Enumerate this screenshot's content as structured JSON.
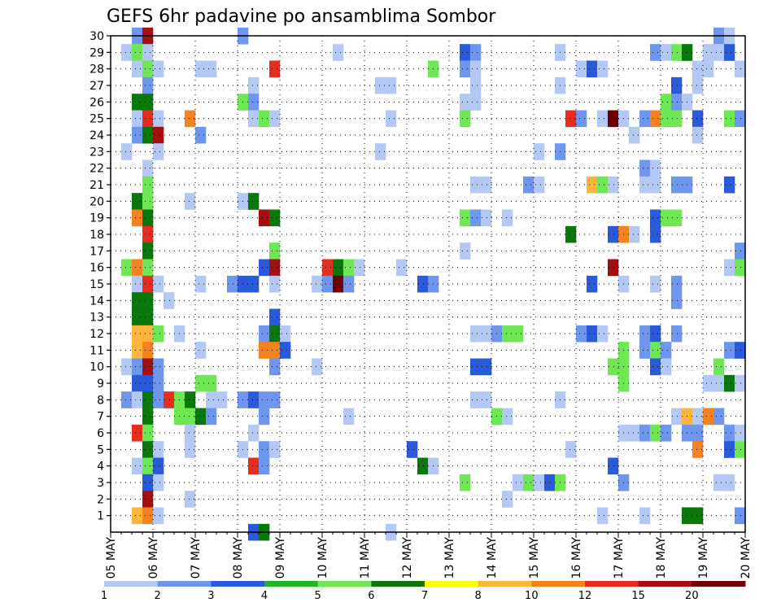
{
  "chart_data": {
    "type": "heatmap",
    "title": "GEFS 6hr padavine po ansamblima Sombor",
    "xlabel": "",
    "ylabel": "",
    "x_ticks": [
      "05 MAY",
      "06 MAY",
      "07 MAY",
      "08 MAY",
      "09 MAY",
      "10 MAY",
      "11 MAY",
      "12 MAY",
      "13 MAY",
      "14 MAY",
      "15 MAY",
      "16 MAY",
      "17 MAY",
      "18 MAY",
      "19 MAY",
      "20 MAY"
    ],
    "xlim": [
      0,
      60
    ],
    "y_ticks": [
      1,
      2,
      3,
      4,
      5,
      6,
      7,
      8,
      9,
      10,
      11,
      12,
      13,
      14,
      15,
      16,
      17,
      18,
      19,
      20,
      21,
      22,
      23,
      24,
      25,
      26,
      27,
      28,
      29,
      30
    ],
    "ylim": [
      0,
      30
    ],
    "grid": true,
    "legend_placement": "bottom",
    "colorbar": {
      "labels": [
        "1",
        "2",
        "3",
        "4",
        "5",
        "6",
        "7",
        "8",
        "10",
        "12",
        "15",
        "20"
      ],
      "colors": [
        "#b4c8f5",
        "#6e96ee",
        "#2a5adc",
        "#22b422",
        "#6ee852",
        "#0a780a",
        "#ffff00",
        "#ffb43c",
        "#f5821e",
        "#e62d1e",
        "#a50f0f",
        "#6e0000"
      ]
    },
    "cell_value_note": "values in mm per 6h",
    "cells": [
      [
        2,
        30,
        2
      ],
      [
        3,
        30,
        15
      ],
      [
        12,
        30,
        2
      ],
      [
        57,
        30,
        2
      ],
      [
        58,
        30,
        1
      ],
      [
        1,
        29,
        1
      ],
      [
        2,
        29,
        5
      ],
      [
        3,
        29,
        1
      ],
      [
        21,
        29,
        1
      ],
      [
        33,
        29,
        3
      ],
      [
        34,
        29,
        2
      ],
      [
        42,
        29,
        1
      ],
      [
        51,
        29,
        2
      ],
      [
        52,
        29,
        1
      ],
      [
        53,
        29,
        5
      ],
      [
        54,
        29,
        6
      ],
      [
        56,
        29,
        1
      ],
      [
        57,
        29,
        1
      ],
      [
        58,
        29,
        3
      ],
      [
        2,
        28,
        1
      ],
      [
        3,
        28,
        5
      ],
      [
        4,
        28,
        1
      ],
      [
        8,
        28,
        1
      ],
      [
        9,
        28,
        1
      ],
      [
        15,
        28,
        12
      ],
      [
        30,
        28,
        5
      ],
      [
        33,
        28,
        2
      ],
      [
        34,
        28,
        1
      ],
      [
        44,
        28,
        1
      ],
      [
        45,
        28,
        3
      ],
      [
        46,
        28,
        1
      ],
      [
        55,
        28,
        1
      ],
      [
        56,
        28,
        1
      ],
      [
        59,
        28,
        1
      ],
      [
        3,
        27,
        2
      ],
      [
        13,
        27,
        1
      ],
      [
        25,
        27,
        1
      ],
      [
        26,
        27,
        1
      ],
      [
        34,
        27,
        1
      ],
      [
        42,
        27,
        1
      ],
      [
        53,
        27,
        3
      ],
      [
        55,
        27,
        1
      ],
      [
        2,
        26,
        6
      ],
      [
        3,
        26,
        6
      ],
      [
        12,
        26,
        5
      ],
      [
        13,
        26,
        2
      ],
      [
        33,
        26,
        1
      ],
      [
        34,
        26,
        1
      ],
      [
        52,
        26,
        5
      ],
      [
        53,
        26,
        2
      ],
      [
        54,
        26,
        1
      ],
      [
        2,
        25,
        1
      ],
      [
        3,
        25,
        12
      ],
      [
        4,
        25,
        1
      ],
      [
        7,
        25,
        10
      ],
      [
        13,
        25,
        1
      ],
      [
        14,
        25,
        5
      ],
      [
        15,
        25,
        1
      ],
      [
        26,
        25,
        1
      ],
      [
        33,
        25,
        5
      ],
      [
        43,
        25,
        12
      ],
      [
        44,
        25,
        2
      ],
      [
        46,
        25,
        1
      ],
      [
        47,
        25,
        20
      ],
      [
        48,
        25,
        1
      ],
      [
        50,
        25,
        2
      ],
      [
        51,
        25,
        10
      ],
      [
        52,
        25,
        5
      ],
      [
        53,
        25,
        5
      ],
      [
        55,
        25,
        3
      ],
      [
        58,
        25,
        5
      ],
      [
        59,
        25,
        2
      ],
      [
        2,
        24,
        2
      ],
      [
        3,
        24,
        6
      ],
      [
        4,
        24,
        15
      ],
      [
        8,
        24,
        2
      ],
      [
        49,
        24,
        1
      ],
      [
        55,
        24,
        1
      ],
      [
        1,
        23,
        1
      ],
      [
        4,
        23,
        1
      ],
      [
        25,
        23,
        1
      ],
      [
        40,
        23,
        1
      ],
      [
        42,
        23,
        2
      ],
      [
        3,
        22,
        1
      ],
      [
        50,
        22,
        2
      ],
      [
        51,
        22,
        1
      ],
      [
        3,
        21,
        5
      ],
      [
        34,
        21,
        1
      ],
      [
        35,
        21,
        1
      ],
      [
        39,
        21,
        2
      ],
      [
        40,
        21,
        1
      ],
      [
        45,
        21,
        8
      ],
      [
        46,
        21,
        5
      ],
      [
        47,
        21,
        1
      ],
      [
        50,
        21,
        1
      ],
      [
        51,
        21,
        1
      ],
      [
        53,
        21,
        2
      ],
      [
        54,
        21,
        2
      ],
      [
        58,
        21,
        3
      ],
      [
        2,
        20,
        6
      ],
      [
        3,
        20,
        5
      ],
      [
        7,
        20,
        1
      ],
      [
        12,
        20,
        1
      ],
      [
        13,
        20,
        6
      ],
      [
        2,
        19,
        10
      ],
      [
        3,
        19,
        6
      ],
      [
        14,
        19,
        15
      ],
      [
        15,
        19,
        6
      ],
      [
        33,
        19,
        5
      ],
      [
        34,
        19,
        2
      ],
      [
        35,
        19,
        1
      ],
      [
        37,
        19,
        1
      ],
      [
        51,
        19,
        3
      ],
      [
        52,
        19,
        5
      ],
      [
        53,
        19,
        5
      ],
      [
        3,
        18,
        12
      ],
      [
        43,
        18,
        6
      ],
      [
        47,
        18,
        3
      ],
      [
        48,
        18,
        10
      ],
      [
        49,
        18,
        1
      ],
      [
        51,
        18,
        3
      ],
      [
        3,
        17,
        6
      ],
      [
        15,
        17,
        5
      ],
      [
        33,
        17,
        1
      ],
      [
        59,
        17,
        2
      ],
      [
        1,
        16,
        5
      ],
      [
        2,
        16,
        10
      ],
      [
        3,
        16,
        5
      ],
      [
        14,
        16,
        3
      ],
      [
        15,
        16,
        15
      ],
      [
        20,
        16,
        12
      ],
      [
        21,
        16,
        6
      ],
      [
        22,
        16,
        5
      ],
      [
        23,
        16,
        1
      ],
      [
        27,
        16,
        1
      ],
      [
        47,
        16,
        15
      ],
      [
        58,
        16,
        1
      ],
      [
        59,
        16,
        5
      ],
      [
        2,
        15,
        1
      ],
      [
        3,
        15,
        12
      ],
      [
        4,
        15,
        1
      ],
      [
        8,
        15,
        1
      ],
      [
        11,
        15,
        2
      ],
      [
        12,
        15,
        3
      ],
      [
        13,
        15,
        3
      ],
      [
        15,
        15,
        1
      ],
      [
        19,
        15,
        1
      ],
      [
        20,
        15,
        2
      ],
      [
        21,
        15,
        20
      ],
      [
        22,
        15,
        2
      ],
      [
        29,
        15,
        3
      ],
      [
        30,
        15,
        2
      ],
      [
        45,
        15,
        3
      ],
      [
        48,
        15,
        1
      ],
      [
        51,
        15,
        1
      ],
      [
        53,
        15,
        2
      ],
      [
        2,
        14,
        6
      ],
      [
        3,
        14,
        6
      ],
      [
        5,
        14,
        1
      ],
      [
        53,
        14,
        2
      ],
      [
        2,
        13,
        6
      ],
      [
        3,
        13,
        6
      ],
      [
        15,
        13,
        3
      ],
      [
        2,
        12,
        8
      ],
      [
        3,
        12,
        8
      ],
      [
        4,
        12,
        5
      ],
      [
        6,
        12,
        1
      ],
      [
        14,
        12,
        2
      ],
      [
        15,
        12,
        6
      ],
      [
        16,
        12,
        1
      ],
      [
        34,
        12,
        1
      ],
      [
        35,
        12,
        1
      ],
      [
        36,
        12,
        2
      ],
      [
        37,
        12,
        5
      ],
      [
        38,
        12,
        5
      ],
      [
        44,
        12,
        2
      ],
      [
        45,
        12,
        3
      ],
      [
        46,
        12,
        1
      ],
      [
        50,
        12,
        2
      ],
      [
        51,
        12,
        3
      ],
      [
        53,
        12,
        2
      ],
      [
        2,
        11,
        8
      ],
      [
        3,
        11,
        10
      ],
      [
        8,
        11,
        1
      ],
      [
        14,
        11,
        10
      ],
      [
        15,
        11,
        10
      ],
      [
        16,
        11,
        3
      ],
      [
        48,
        11,
        5
      ],
      [
        50,
        11,
        2
      ],
      [
        51,
        11,
        5
      ],
      [
        52,
        11,
        2
      ],
      [
        58,
        11,
        2
      ],
      [
        59,
        11,
        3
      ],
      [
        1,
        10,
        1
      ],
      [
        2,
        10,
        2
      ],
      [
        3,
        10,
        15
      ],
      [
        4,
        10,
        2
      ],
      [
        15,
        10,
        2
      ],
      [
        19,
        10,
        1
      ],
      [
        34,
        10,
        3
      ],
      [
        35,
        10,
        3
      ],
      [
        47,
        10,
        5
      ],
      [
        48,
        10,
        5
      ],
      [
        51,
        10,
        3
      ],
      [
        52,
        10,
        1
      ],
      [
        57,
        10,
        5
      ],
      [
        2,
        9,
        3
      ],
      [
        3,
        9,
        3
      ],
      [
        4,
        9,
        2
      ],
      [
        8,
        9,
        5
      ],
      [
        9,
        9,
        5
      ],
      [
        48,
        9,
        5
      ],
      [
        56,
        9,
        1
      ],
      [
        57,
        9,
        1
      ],
      [
        58,
        9,
        6
      ],
      [
        59,
        9,
        1
      ],
      [
        1,
        8,
        2
      ],
      [
        2,
        8,
        1
      ],
      [
        3,
        8,
        6
      ],
      [
        4,
        8,
        2
      ],
      [
        5,
        8,
        12
      ],
      [
        6,
        8,
        5
      ],
      [
        7,
        8,
        6
      ],
      [
        9,
        8,
        1
      ],
      [
        10,
        8,
        1
      ],
      [
        12,
        8,
        2
      ],
      [
        13,
        8,
        3
      ],
      [
        14,
        8,
        2
      ],
      [
        15,
        8,
        2
      ],
      [
        34,
        8,
        1
      ],
      [
        35,
        8,
        1
      ],
      [
        42,
        8,
        1
      ],
      [
        3,
        7,
        6
      ],
      [
        6,
        7,
        5
      ],
      [
        7,
        7,
        5
      ],
      [
        8,
        7,
        6
      ],
      [
        9,
        7,
        2
      ],
      [
        14,
        7,
        2
      ],
      [
        22,
        7,
        1
      ],
      [
        36,
        7,
        5
      ],
      [
        37,
        7,
        1
      ],
      [
        53,
        7,
        1
      ],
      [
        54,
        7,
        8
      ],
      [
        55,
        7,
        1
      ],
      [
        56,
        7,
        10
      ],
      [
        57,
        7,
        2
      ],
      [
        2,
        6,
        12
      ],
      [
        3,
        6,
        5
      ],
      [
        7,
        6,
        1
      ],
      [
        13,
        6,
        1
      ],
      [
        48,
        6,
        1
      ],
      [
        49,
        6,
        1
      ],
      [
        50,
        6,
        2
      ],
      [
        51,
        6,
        5
      ],
      [
        52,
        6,
        2
      ],
      [
        54,
        6,
        2
      ],
      [
        55,
        6,
        2
      ],
      [
        58,
        6,
        2
      ],
      [
        59,
        6,
        1
      ],
      [
        3,
        5,
        6
      ],
      [
        4,
        5,
        1
      ],
      [
        7,
        5,
        1
      ],
      [
        12,
        5,
        1
      ],
      [
        14,
        5,
        2
      ],
      [
        15,
        5,
        1
      ],
      [
        28,
        5,
        3
      ],
      [
        43,
        5,
        1
      ],
      [
        55,
        5,
        10
      ],
      [
        58,
        5,
        3
      ],
      [
        59,
        5,
        5
      ],
      [
        2,
        4,
        1
      ],
      [
        3,
        4,
        5
      ],
      [
        4,
        4,
        3
      ],
      [
        13,
        4,
        12
      ],
      [
        14,
        4,
        2
      ],
      [
        29,
        4,
        6
      ],
      [
        30,
        4,
        1
      ],
      [
        47,
        4,
        3
      ],
      [
        3,
        3,
        3
      ],
      [
        4,
        3,
        1
      ],
      [
        33,
        3,
        5
      ],
      [
        38,
        3,
        1
      ],
      [
        39,
        3,
        5
      ],
      [
        40,
        3,
        1
      ],
      [
        41,
        3,
        3
      ],
      [
        42,
        3,
        5
      ],
      [
        48,
        3,
        2
      ],
      [
        57,
        3,
        1
      ],
      [
        58,
        3,
        1
      ],
      [
        3,
        2,
        15
      ],
      [
        7,
        2,
        1
      ],
      [
        37,
        2,
        1
      ],
      [
        2,
        1,
        8
      ],
      [
        3,
        1,
        10
      ],
      [
        4,
        1,
        1
      ],
      [
        46,
        1,
        1
      ],
      [
        50,
        1,
        1
      ],
      [
        54,
        1,
        6
      ],
      [
        55,
        1,
        6
      ],
      [
        59,
        1,
        2
      ],
      [
        13,
        0,
        3
      ],
      [
        14,
        0,
        6
      ],
      [
        26,
        0,
        1
      ]
    ]
  }
}
